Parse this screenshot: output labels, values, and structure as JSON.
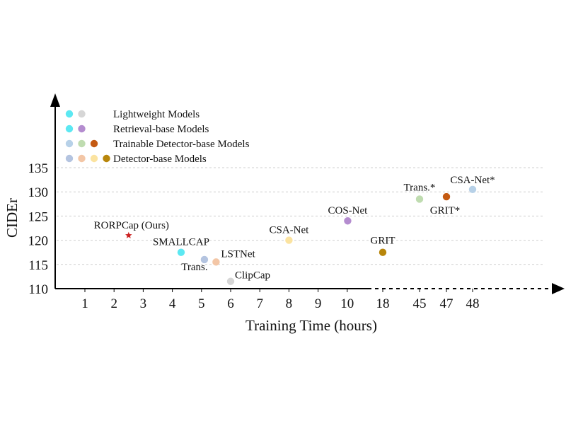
{
  "chart_data": {
    "type": "scatter",
    "xlabel": "Training Time (hours)",
    "ylabel": "CIDEr",
    "x_categories": [
      "1",
      "2",
      "3",
      "4",
      "5",
      "6",
      "7",
      "8",
      "9",
      "10",
      "18",
      "45",
      "47",
      "48"
    ],
    "x_axis_note": "broken axis: evenly spaced categorical ticks 1–10, then 18, 45, 47, 48",
    "ylim": [
      110,
      135
    ],
    "yticks": [
      110,
      115,
      120,
      125,
      130,
      135
    ],
    "grid": "horizontal dashed",
    "legend_position": "top-left",
    "legend": [
      {
        "label": "Lightweight Models",
        "colors": [
          "#5ce8f2",
          "#d6d6d6"
        ]
      },
      {
        "label": "Retrieval-base Models",
        "colors": [
          "#5ce8f2",
          "#b48ccf"
        ]
      },
      {
        "label": "Trainable Detector-base Models",
        "colors": [
          "#b7d1e8",
          "#bfdcb0",
          "#c45a12"
        ]
      },
      {
        "label": "Detector-base Models",
        "colors": [
          "#b4c4e0",
          "#f3c6a6",
          "#fbe3a0",
          "#b8860b"
        ]
      }
    ],
    "points": [
      {
        "name": "RORPCap (Ours)",
        "x": 2.5,
        "y": 121,
        "color": "#cc2222",
        "marker": "star"
      },
      {
        "name": "SMALLCAP",
        "x": 4.3,
        "y": 117.5,
        "color": "#5ce8f2",
        "marker": "circle"
      },
      {
        "name": "Trans.",
        "x": 5.1,
        "y": 116,
        "color": "#b4c4e0",
        "marker": "circle"
      },
      {
        "name": "LSTNet",
        "x": 5.5,
        "y": 115.5,
        "color": "#f3c6a6",
        "marker": "circle"
      },
      {
        "name": "ClipCap",
        "x": 6.0,
        "y": 111.5,
        "color": "#d6d6d6",
        "marker": "circle"
      },
      {
        "name": "CSA-Net",
        "x": 8.0,
        "y": 120,
        "color": "#fbe3a0",
        "marker": "circle"
      },
      {
        "name": "COS-Net",
        "x": 10.1,
        "y": 124,
        "color": "#b48ccf",
        "marker": "circle"
      },
      {
        "name": "GRIT",
        "x": 18,
        "y": 117.5,
        "color": "#b8860b",
        "marker": "circle"
      },
      {
        "name": "Trans.*",
        "x": 45,
        "y": 128.5,
        "color": "#bfdcb0",
        "marker": "circle"
      },
      {
        "name": "GRIT*",
        "x": 47,
        "y": 129,
        "color": "#c45a12",
        "marker": "circle"
      },
      {
        "name": "CSA-Net*",
        "x": 48,
        "y": 130.5,
        "color": "#b7d1e8",
        "marker": "circle"
      }
    ]
  }
}
